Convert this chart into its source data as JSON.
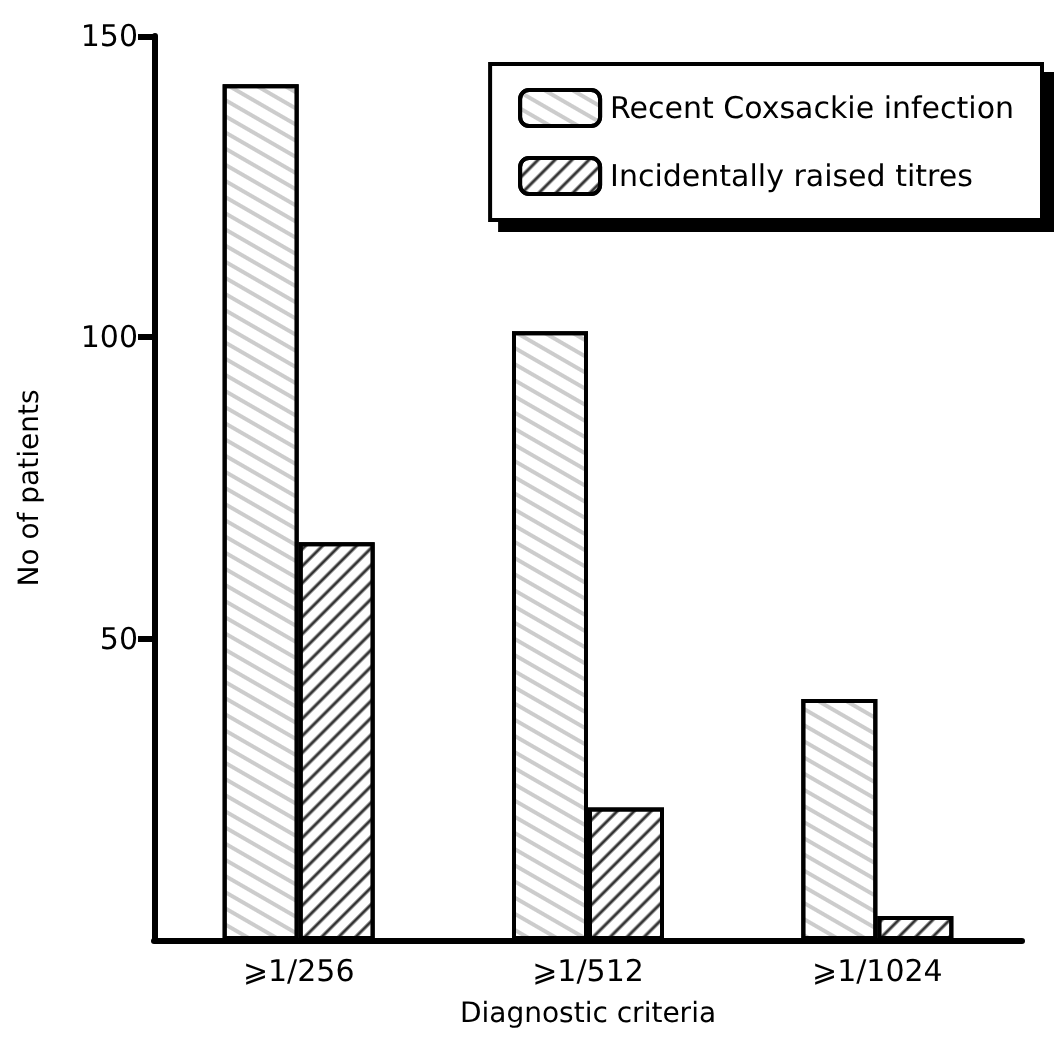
{
  "chart_data": {
    "type": "bar",
    "xlabel": "Diagnostic criteria",
    "ylabel": "No of patients",
    "categories": [
      "⩾1/256",
      "⩾1/512",
      "⩾1/1024"
    ],
    "series": [
      {
        "name": "Recent Coxsackie infection",
        "color": "#ffffff",
        "values": [
          142,
          101,
          40
        ]
      },
      {
        "name": "Incidentally raised titres",
        "color": "#000000",
        "values": [
          66,
          22,
          4
        ]
      }
    ],
    "ylim": [
      0,
      150
    ],
    "yticks": [
      50,
      100,
      150
    ],
    "grid": false,
    "legend": "top right"
  }
}
